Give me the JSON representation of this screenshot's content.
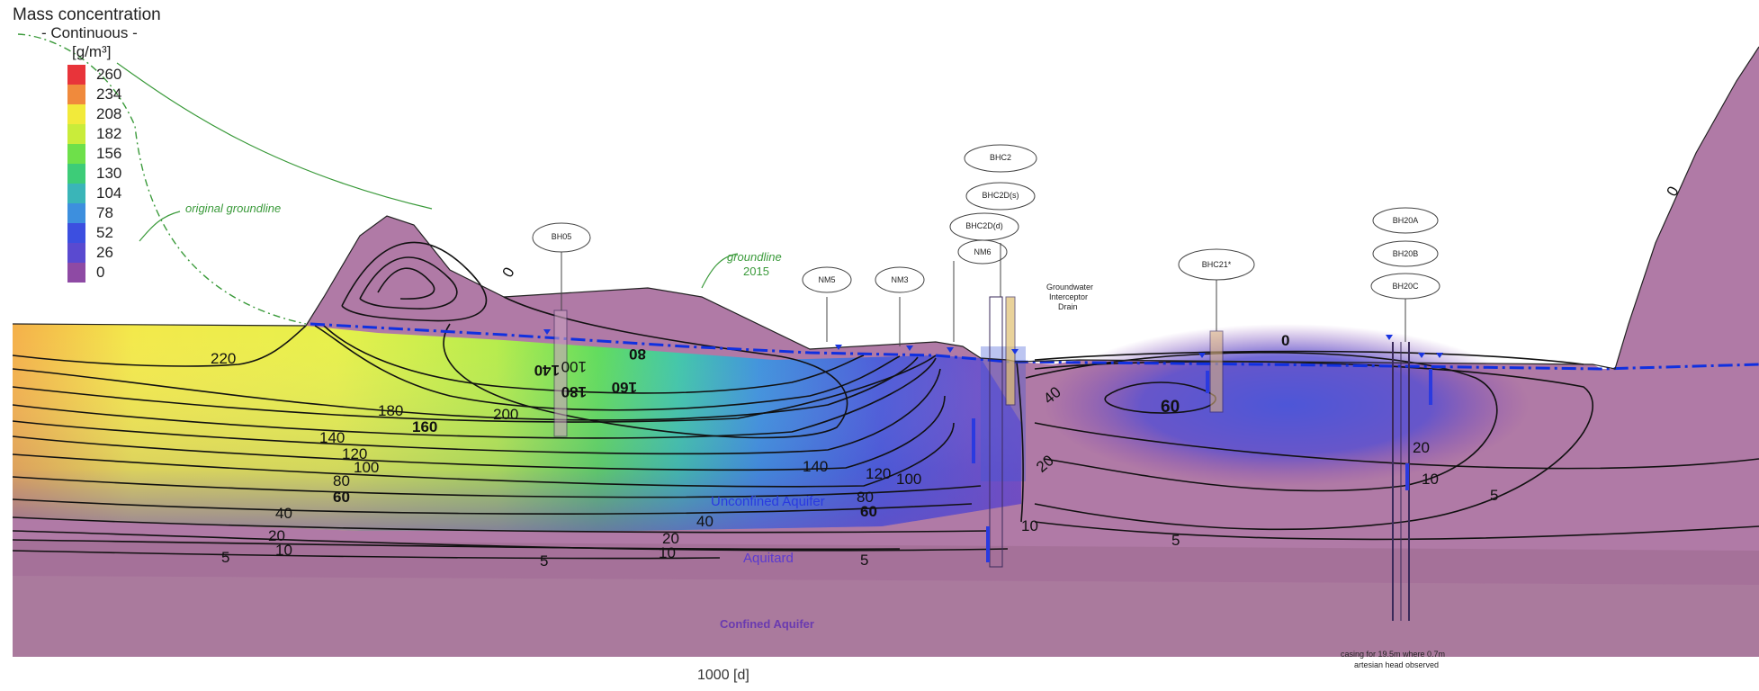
{
  "legend": {
    "title_line1": "Mass concentration",
    "title_line2": "- Continuous -",
    "unit": "[g/m³]",
    "entries": [
      {
        "label": "260",
        "color": "#e8343a"
      },
      {
        "label": "234",
        "color": "#f08a3c"
      },
      {
        "label": "208",
        "color": "#f2ea3a"
      },
      {
        "label": "182",
        "color": "#c9ec3a"
      },
      {
        "label": "156",
        "color": "#6ee04a"
      },
      {
        "label": "130",
        "color": "#3dcc78"
      },
      {
        "label": "104",
        "color": "#3ab5b8"
      },
      {
        "label": "78",
        "color": "#3d8fde"
      },
      {
        "label": "52",
        "color": "#3c4fe0"
      },
      {
        "label": "26",
        "color": "#5a4ad0"
      },
      {
        "label": "0",
        "color": "#8e4aa4"
      }
    ]
  },
  "annotations": {
    "original_groundline": "original groundline",
    "groundline": "groundline",
    "groundline_year": "2015",
    "unconfined": "Unconfined Aquifer",
    "aquitard": "Aquitard",
    "confined": "Confined Aquifer",
    "interceptor_1": "Groundwater",
    "interceptor_2": "Interceptor",
    "interceptor_3": "Drain",
    "artesian_1": "casing for 19.5m where 0.7m",
    "artesian_2": "artesian head observed"
  },
  "wells": {
    "bh05": "BH05",
    "nm5": "NM5",
    "nm3": "NM3",
    "bhc2": "BHC2",
    "bhc2d1": "BHC2D(s)",
    "bhc2d2": "BHC2D(d)",
    "nm6": "NM6",
    "bhc21": "BHC21*",
    "bh20a": "BH20A",
    "bh20b": "BH20B",
    "bh20c": "BH20C"
  },
  "contour_labels": {
    "c220": "220",
    "c180": "180",
    "c160": "160",
    "c200": "200",
    "c140a": "140",
    "c120a": "120",
    "c100a": "100",
    "c80a": "80",
    "c60a": "60",
    "c40a": "40",
    "c20a": "20",
    "c10a": "10",
    "c5a": "5",
    "c5b": "5",
    "c20b": "20",
    "c10b": "10",
    "c5c": "5",
    "c40b": "40",
    "c60b": "60",
    "c80b": "80",
    "c100b": "100",
    "c120b": "120",
    "c140b": "140",
    "c180u": "180",
    "c160u": "160",
    "c140u": "140",
    "c100u": "100",
    "c80u": "80",
    "c60c": "60",
    "c40c": "40",
    "c20c": "20",
    "c10c": "10",
    "c5d": "5",
    "c20d": "20",
    "c10d": "10",
    "c5e": "5",
    "c0a": "0",
    "c0b": "0",
    "c0c": "0"
  },
  "axis_caption": "1000 [d]"
}
